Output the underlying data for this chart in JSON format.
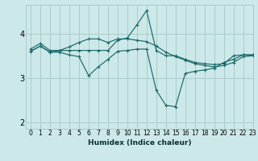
{
  "xlabel": "Humidex (Indice chaleur)",
  "background_color": "#cce8e8",
  "grid_color": "#aacccc",
  "line_color": "#1a6868",
  "xlim": [
    -0.5,
    23
  ],
  "ylim": [
    1.85,
    4.65
  ],
  "yticks": [
    2,
    3,
    4
  ],
  "xticks": [
    0,
    1,
    2,
    3,
    4,
    5,
    6,
    7,
    8,
    9,
    10,
    11,
    12,
    13,
    14,
    15,
    16,
    17,
    18,
    19,
    20,
    21,
    22,
    23
  ],
  "s1_x": [
    0,
    1,
    2,
    3,
    4,
    5,
    6,
    7,
    8,
    9,
    10,
    11,
    12,
    13,
    14,
    15,
    16,
    17,
    18,
    19,
    20,
    21,
    22,
    23
  ],
  "s1_y": [
    3.65,
    3.78,
    3.62,
    3.62,
    3.62,
    3.62,
    3.62,
    3.62,
    3.62,
    3.85,
    3.9,
    4.2,
    4.52,
    3.62,
    3.5,
    3.5,
    3.42,
    3.35,
    3.32,
    3.3,
    3.32,
    3.5,
    3.52,
    3.52
  ],
  "s2_x": [
    0,
    1,
    2,
    3,
    4,
    5,
    6,
    7,
    8,
    9,
    10,
    11,
    12,
    13,
    14,
    15,
    16,
    17,
    18,
    19,
    20,
    21,
    22,
    23
  ],
  "s2_y": [
    3.6,
    3.72,
    3.58,
    3.58,
    3.52,
    3.48,
    3.05,
    3.25,
    3.42,
    3.6,
    3.62,
    3.65,
    3.65,
    2.72,
    2.38,
    2.35,
    3.1,
    3.15,
    3.18,
    3.22,
    3.35,
    3.42,
    3.52,
    3.52
  ],
  "s3_x": [
    0,
    1,
    2,
    3,
    4,
    5,
    6,
    7,
    8,
    9,
    10,
    11,
    12,
    13,
    14,
    15,
    16,
    17,
    18,
    19,
    20,
    21,
    22,
    23
  ],
  "s3_y": [
    3.6,
    3.72,
    3.58,
    3.62,
    3.7,
    3.8,
    3.88,
    3.88,
    3.8,
    3.88,
    3.88,
    3.85,
    3.82,
    3.72,
    3.58,
    3.48,
    3.4,
    3.32,
    3.28,
    3.25,
    3.28,
    3.35,
    3.48,
    3.5
  ]
}
